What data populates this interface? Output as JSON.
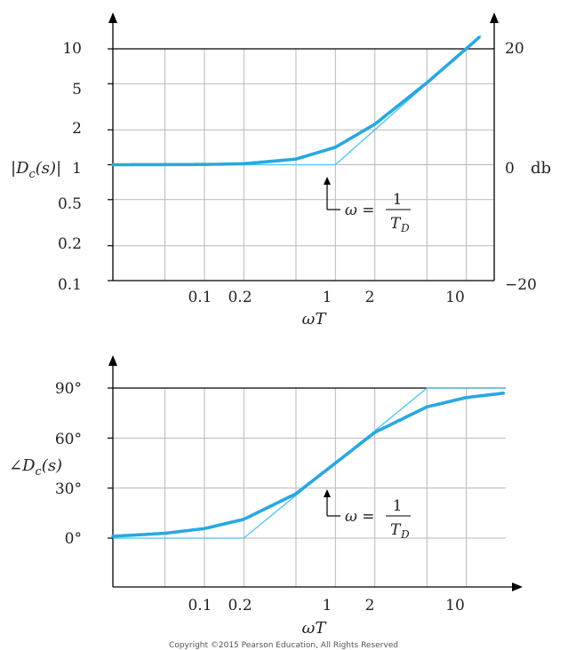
{
  "colors": {
    "curve": "#29a8e0",
    "asymptote": "#4fc3ec",
    "grid": "#b8b8b8",
    "axis": "#000000"
  },
  "chart_data": [
    {
      "type": "line",
      "scale": "log-log",
      "xlabel": "ωT",
      "ylabel": "|D_c(s)|",
      "right_axis_label": "db",
      "x_tick_labels": [
        "0.1",
        "0.2",
        "1",
        "2",
        "10"
      ],
      "y_tick_labels": [
        "0.1",
        "0.2",
        "0.5",
        "1",
        "2",
        "5",
        "10"
      ],
      "right_tick_labels": [
        "20",
        "0",
        "−20"
      ],
      "xlim": [
        0.02,
        20
      ],
      "ylim": [
        0.1,
        10
      ],
      "annotation": {
        "text": "ω =",
        "num": "1",
        "den": "T",
        "den_sub": "D",
        "x": 1
      },
      "series": [
        {
          "values": [
            [
              0.02,
              1.0
            ],
            [
              0.1,
              1.005
            ],
            [
              0.2,
              1.02
            ],
            [
              0.5,
              1.118
            ],
            [
              1,
              1.414
            ],
            [
              2,
              2.236
            ],
            [
              5,
              5.099
            ],
            [
              10,
              10.05
            ],
            [
              13,
              13.04
            ]
          ]
        },
        {
          "values": [
            [
              0.02,
              1
            ],
            [
              1,
              1
            ],
            [
              13,
              13
            ]
          ]
        }
      ]
    },
    {
      "type": "line",
      "scale": "semilog-x",
      "xlabel": "ωT",
      "ylabel": "∠D_c(s)",
      "x_tick_labels": [
        "0.1",
        "0.2",
        "1",
        "2",
        "10"
      ],
      "y_tick_labels": [
        "0°",
        "30°",
        "60°",
        "90°"
      ],
      "xlim": [
        0.02,
        20
      ],
      "ylim": [
        -25,
        100
      ],
      "annotation": {
        "text": "ω =",
        "num": "1",
        "den": "T",
        "den_sub": "D",
        "x": 1
      },
      "series": [
        {
          "values": [
            [
              0.02,
              1.1
            ],
            [
              0.05,
              2.9
            ],
            [
              0.1,
              5.7
            ],
            [
              0.2,
              11.3
            ],
            [
              0.5,
              26.6
            ],
            [
              1,
              45
            ],
            [
              2,
              63.4
            ],
            [
              5,
              78.7
            ],
            [
              10,
              84.3
            ],
            [
              20,
              87.1
            ]
          ]
        },
        {
          "values": [
            [
              0.02,
              0
            ],
            [
              0.2,
              0
            ],
            [
              5,
              90
            ],
            [
              20,
              90
            ]
          ]
        }
      ]
    }
  ],
  "copyright": "Copyright ©2015 Pearson Education, All Rights Reserved"
}
